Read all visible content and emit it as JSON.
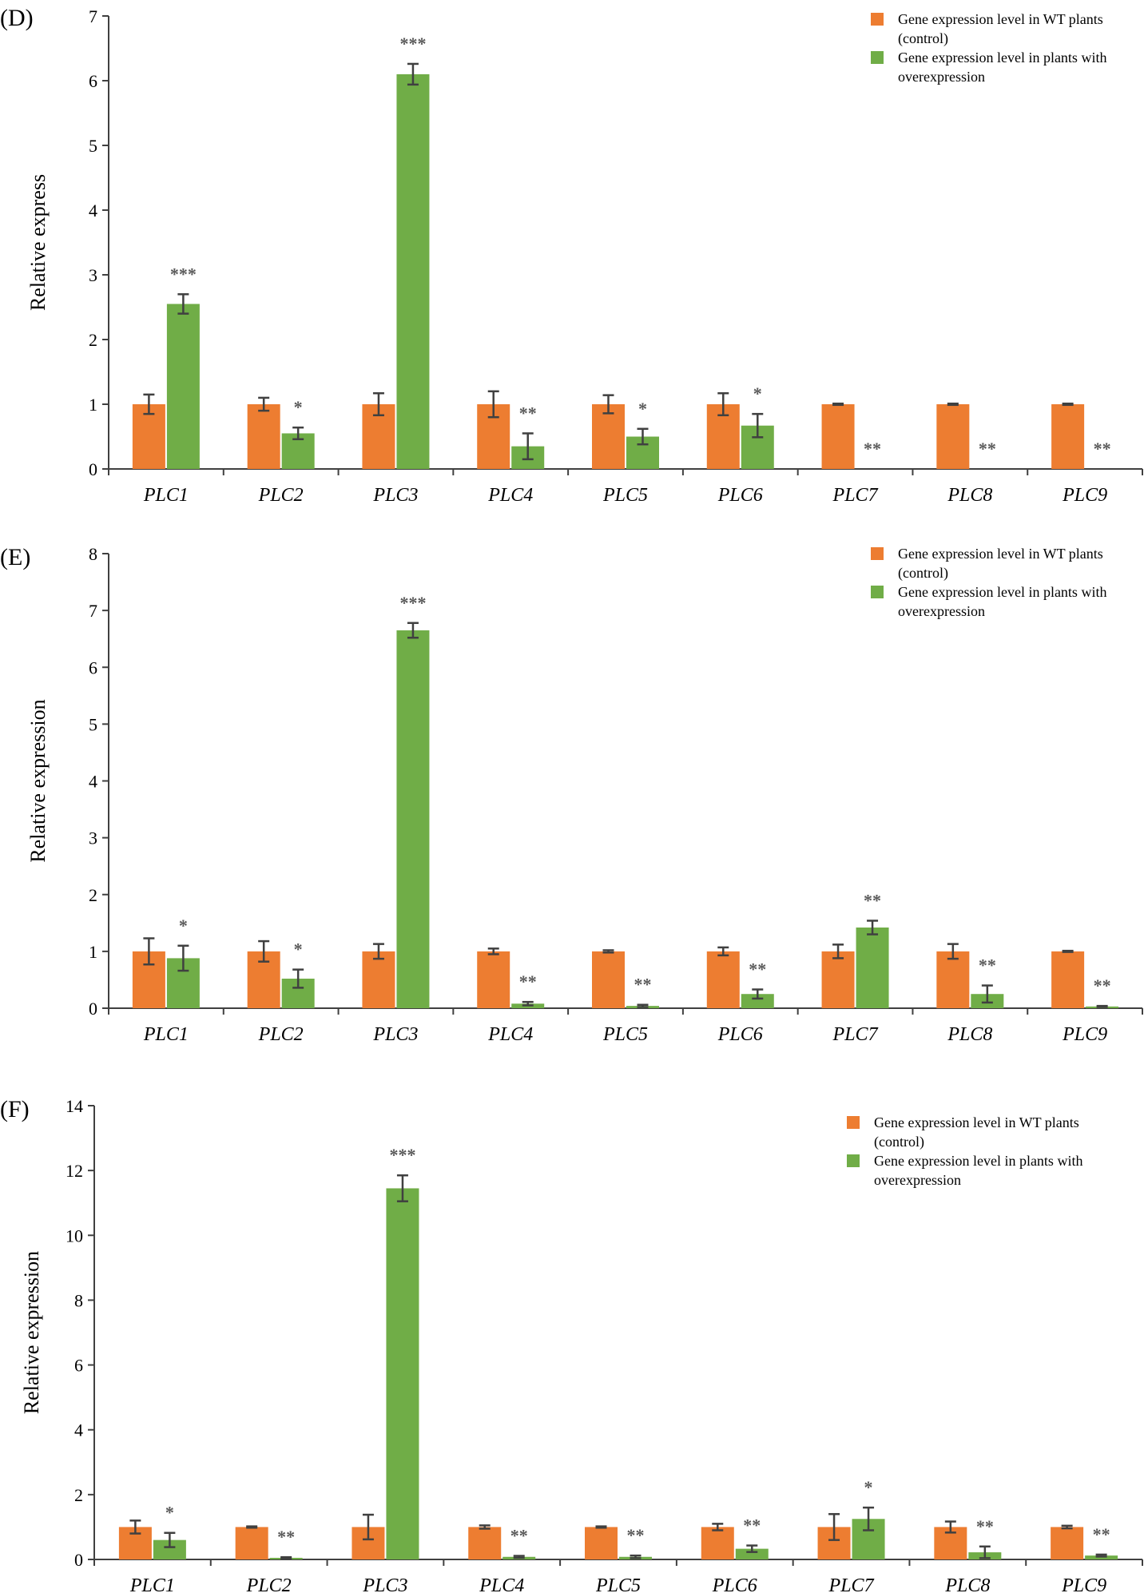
{
  "colors": {
    "control": "#ED7D31",
    "overexpression": "#70AD47",
    "axis": "#404040",
    "errorbar": "#404040",
    "significance": "#595959"
  },
  "chart_data": [
    {
      "type": "bar",
      "panel_label": "(D)",
      "ylabel": "Relative express",
      "xlabel": "",
      "ylim": [
        0,
        7
      ],
      "y_ticks": [
        0,
        1,
        2,
        3,
        4,
        5,
        6,
        7
      ],
      "categories": [
        "PLC1",
        "PLC2",
        "PLC3",
        "PLC4",
        "PLC5",
        "PLC6",
        "PLC7",
        "PLC8",
        "PLC9"
      ],
      "legend": {
        "position": "top-right",
        "entries": [
          {
            "lines": [
              "Gene expression level in WT plants",
              "(control)"
            ]
          },
          {
            "lines": [
              "Gene expression level in plants with",
              "overexpression"
            ]
          }
        ]
      },
      "series": [
        {
          "name": "Gene expression level in WT plants (control)",
          "values": [
            1,
            1,
            1,
            1,
            1,
            1,
            1,
            1,
            1
          ],
          "errors": [
            0.15,
            0.1,
            0.17,
            0.2,
            0.14,
            0.17,
            0.01,
            0.01,
            0.01
          ]
        },
        {
          "name": "Gene expression level in plants with overexpression",
          "values": [
            2.55,
            0.55,
            6.1,
            0.35,
            0.5,
            0.67,
            0,
            0,
            0
          ],
          "errors": [
            0.15,
            0.09,
            0.16,
            0.2,
            0.12,
            0.18,
            0,
            0,
            0
          ]
        }
      ],
      "significance": [
        "***",
        "*",
        "***",
        "**",
        "*",
        "*",
        "**",
        "**",
        "**"
      ]
    },
    {
      "type": "bar",
      "panel_label": "(E)",
      "ylabel": "Relative expression",
      "xlabel": "",
      "ylim": [
        0,
        8
      ],
      "y_ticks": [
        0,
        1,
        2,
        3,
        4,
        5,
        6,
        7,
        8
      ],
      "categories": [
        "PLC1",
        "PLC2",
        "PLC3",
        "PLC4",
        "PLC5",
        "PLC6",
        "PLC7",
        "PLC8",
        "PLC9"
      ],
      "legend": {
        "position": "top-right",
        "entries": [
          {
            "lines": [
              "Gene expression level in WT plants",
              "(control)"
            ]
          },
          {
            "lines": [
              "Gene expression level in plants with",
              "overexpression"
            ]
          }
        ]
      },
      "series": [
        {
          "name": "Gene expression level in WT plants (control)",
          "values": [
            1,
            1,
            1,
            1,
            1,
            1,
            1,
            1,
            1
          ],
          "errors": [
            0.23,
            0.18,
            0.13,
            0.05,
            0.02,
            0.07,
            0.12,
            0.13,
            0.01
          ]
        },
        {
          "name": "Gene expression level in plants with overexpression",
          "values": [
            0.88,
            0.52,
            6.65,
            0.08,
            0.04,
            0.25,
            1.42,
            0.25,
            0.03
          ]
        },
        {
          "name": "_errors_overexpression",
          "values": [
            0.22,
            0.16,
            0.13,
            0.03,
            0.02,
            0.08,
            0.12,
            0.15,
            0.01
          ]
        }
      ],
      "significance": [
        "*",
        "*",
        "***",
        "**",
        "**",
        "**",
        "**",
        "**",
        "**"
      ]
    },
    {
      "type": "bar",
      "panel_label": "(F)",
      "ylabel": "Relative expression",
      "xlabel": "",
      "ylim": [
        0,
        14
      ],
      "y_ticks": [
        0,
        2,
        4,
        6,
        8,
        10,
        12,
        14
      ],
      "categories": [
        "PLC1",
        "PLC2",
        "PLC3",
        "PLC4",
        "PLC5",
        "PLC6",
        "PLC7",
        "PLC8",
        "PLC9"
      ],
      "legend": {
        "position": "top-right",
        "entries": [
          {
            "lines": [
              "Gene expression level in WT plants",
              "(control)"
            ]
          },
          {
            "lines": [
              "Gene expression level in plants with",
              "overexpression"
            ]
          }
        ]
      },
      "series": [
        {
          "name": "Gene expression level in WT plants (control)",
          "values": [
            1,
            1,
            1,
            1,
            1,
            1,
            1,
            1,
            1
          ],
          "errors": [
            0.2,
            0.02,
            0.38,
            0.05,
            0.02,
            0.1,
            0.4,
            0.17,
            0.04
          ]
        },
        {
          "name": "Gene expression level in plants with overexpression",
          "values": [
            0.6,
            0.05,
            11.45,
            0.08,
            0.08,
            0.33,
            1.25,
            0.22,
            0.12
          ]
        },
        {
          "name": "_errors_overexpression",
          "values": [
            0.22,
            0.02,
            0.4,
            0.03,
            0.04,
            0.1,
            0.35,
            0.18,
            0.03
          ]
        }
      ],
      "significance": [
        "*",
        "**",
        "***",
        "**",
        "**",
        "**",
        "*",
        "**",
        "**"
      ]
    }
  ]
}
